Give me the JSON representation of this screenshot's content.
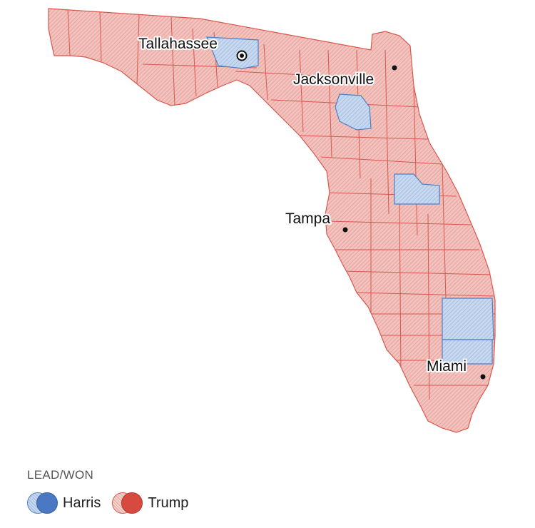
{
  "colors": {
    "trump_fill": "#f2c2be",
    "trump_stroke": "#d9574d",
    "trump_solid": "#d64a3f",
    "harris_fill": "#c8d9ef",
    "harris_stroke": "#4f7fc6",
    "harris_solid": "#4a78c2"
  },
  "cities": [
    {
      "name": "Tallahassee",
      "capital": true
    },
    {
      "name": "Jacksonville",
      "capital": false
    },
    {
      "name": "Tampa",
      "capital": false
    },
    {
      "name": "Miami",
      "capital": false
    }
  ],
  "counties": {
    "harris": [
      "Leon",
      "Alachua",
      "Orange",
      "Broward",
      "Palm Beach"
    ],
    "trump_note": "all other counties"
  },
  "legend": {
    "title": "LEAD/WON",
    "items": [
      {
        "label": "Harris",
        "party": "harris"
      },
      {
        "label": "Trump",
        "party": "trump"
      }
    ]
  }
}
